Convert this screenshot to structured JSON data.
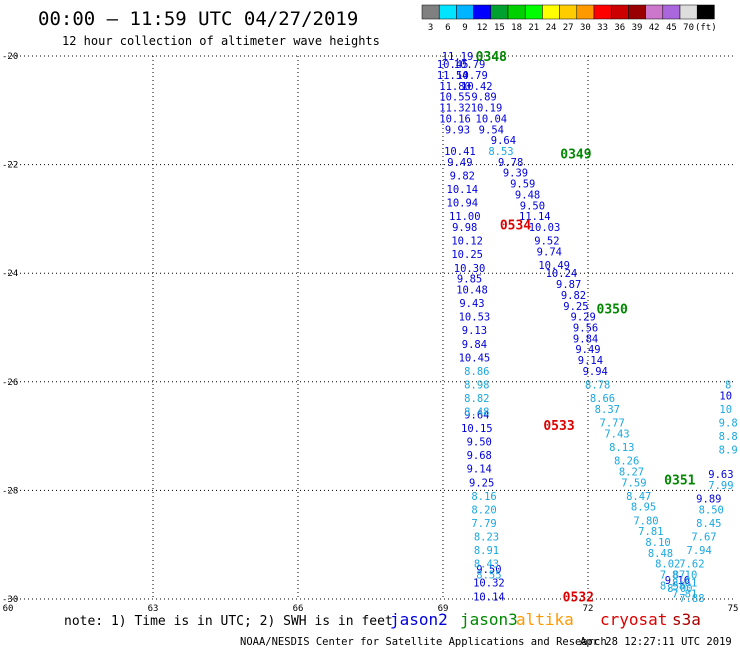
{
  "header": {
    "title": "00:00 – 11:59 UTC 04/27/2019",
    "subtitle": "12 hour collection of altimeter wave heights"
  },
  "color_scale": {
    "labels": [
      "3",
      "6",
      "9",
      "12",
      "15",
      "18",
      "21",
      "24",
      "27",
      "30",
      "33",
      "36",
      "39",
      "42",
      "45",
      "70",
      "(ft)"
    ],
    "colors": [
      "#808080",
      "#00e5ff",
      "#00b4ff",
      "#0000ff",
      "#00a030",
      "#00d000",
      "#00ff00",
      "#ffff00",
      "#ffcc00",
      "#ff9900",
      "#ff0000",
      "#cc0000",
      "#990000",
      "#cc77cc",
      "#aa66dd",
      "#dddddd",
      "#000000"
    ]
  },
  "chart_data": {
    "type": "scatter",
    "title": "00:00 – 11:59 UTC 04/27/2019",
    "subtitle": "12 hour collection of altimeter wave heights",
    "xlim": [
      60,
      75
    ],
    "ylim": [
      -30,
      -20
    ],
    "x_ticks": [
      "60",
      "63",
      "66",
      "69",
      "72",
      "75"
    ],
    "y_ticks": [
      "-20",
      "-22",
      "-24",
      "-26",
      "-28",
      "-30"
    ],
    "grid": true,
    "colors": {
      "dark": "#0000dd",
      "light": "#1aa8e0",
      "pass_green": "#008800",
      "pass_red": "#dd0000"
    },
    "pass_labels": [
      {
        "text": "0348",
        "x": 70.0,
        "y": -20.0,
        "color": "pass_green"
      },
      {
        "text": "0349",
        "x": 71.75,
        "y": -21.8,
        "color": "pass_green"
      },
      {
        "text": "0350",
        "x": 72.5,
        "y": -24.65,
        "color": "pass_green"
      },
      {
        "text": "0351",
        "x": 73.9,
        "y": -27.8,
        "color": "pass_green"
      },
      {
        "text": "0534",
        "x": 70.5,
        "y": -23.1,
        "color": "pass_red"
      },
      {
        "text": "0533",
        "x": 71.4,
        "y": -26.8,
        "color": "pass_red"
      },
      {
        "text": "0532",
        "x": 71.8,
        "y": -29.95,
        "color": "pass_red"
      }
    ],
    "tracks": [
      {
        "name": "",
        "color": "dark",
        "points": [
          {
            "lon": 69.3,
            "lat": -20.0,
            "v": "11.19"
          },
          {
            "lon": 69.2,
            "lat": -20.15,
            "v": "10.45"
          },
          {
            "lon": 69.55,
            "lat": -20.15,
            "v": "10.79"
          },
          {
            "lon": 69.2,
            "lat": -20.35,
            "v": "11.54"
          },
          {
            "lon": 69.6,
            "lat": -20.35,
            "v": "10.79"
          },
          {
            "lon": 69.25,
            "lat": -20.55,
            "v": "11.80"
          },
          {
            "lon": 69.7,
            "lat": -20.55,
            "v": "10.42"
          },
          {
            "lon": 69.25,
            "lat": -20.75,
            "v": "10.55"
          },
          {
            "lon": 69.85,
            "lat": -20.75,
            "v": "9.89"
          },
          {
            "lon": 69.25,
            "lat": -20.95,
            "v": "11.32"
          },
          {
            "lon": 69.9,
            "lat": -20.95,
            "v": "10.19"
          },
          {
            "lon": 69.25,
            "lat": -21.15,
            "v": "10.16"
          },
          {
            "lon": 70.0,
            "lat": -21.15,
            "v": "10.04"
          },
          {
            "lon": 69.3,
            "lat": -21.35,
            "v": "9.93"
          },
          {
            "lon": 70.0,
            "lat": -21.35,
            "v": "9.54"
          },
          {
            "lon": 70.25,
            "lat": -21.55,
            "v": "9.64"
          },
          {
            "lon": 69.35,
            "lat": -21.75,
            "v": "10.41"
          },
          {
            "lon": 69.35,
            "lat": -21.95,
            "v": "9.49"
          },
          {
            "lon": 70.4,
            "lat": -21.95,
            "v": "9.78"
          },
          {
            "lon": 70.5,
            "lat": -22.15,
            "v": "9.39"
          },
          {
            "lon": 69.4,
            "lat": -22.2,
            "v": "9.82"
          },
          {
            "lon": 70.65,
            "lat": -22.35,
            "v": "9.59"
          },
          {
            "lon": 69.4,
            "lat": -22.45,
            "v": "10.14"
          },
          {
            "lon": 70.75,
            "lat": -22.55,
            "v": "9.48"
          },
          {
            "lon": 69.4,
            "lat": -22.7,
            "v": "10.94"
          },
          {
            "lon": 70.85,
            "lat": -22.75,
            "v": "9.50"
          },
          {
            "lon": 69.45,
            "lat": -22.95,
            "v": "11.00"
          },
          {
            "lon": 70.9,
            "lat": -22.95,
            "v": "11.14"
          },
          {
            "lon": 69.45,
            "lat": -23.15,
            "v": "9.98"
          },
          {
            "lon": 71.1,
            "lat": -23.15,
            "v": "10.03"
          },
          {
            "lon": 69.5,
            "lat": -23.4,
            "v": "10.12"
          },
          {
            "lon": 71.15,
            "lat": -23.4,
            "v": "9.52"
          },
          {
            "lon": 71.2,
            "lat": -23.6,
            "v": "9.74"
          },
          {
            "lon": 69.5,
            "lat": -23.65,
            "v": "10.25"
          },
          {
            "lon": 71.3,
            "lat": -23.85,
            "v": "10.49"
          },
          {
            "lon": 69.55,
            "lat": -23.9,
            "v": "10.30"
          },
          {
            "lon": 71.45,
            "lat": -24.0,
            "v": "10.24"
          },
          {
            "lon": 69.55,
            "lat": -24.1,
            "v": "9.85"
          },
          {
            "lon": 71.6,
            "lat": -24.2,
            "v": "9.87"
          },
          {
            "lon": 69.6,
            "lat": -24.3,
            "v": "10.48"
          },
          {
            "lon": 71.7,
            "lat": -24.4,
            "v": "9.82"
          },
          {
            "lon": 69.6,
            "lat": -24.55,
            "v": "9.43"
          },
          {
            "lon": 71.75,
            "lat": -24.6,
            "v": "9.25"
          },
          {
            "lon": 71.9,
            "lat": -24.8,
            "v": "9.29"
          },
          {
            "lon": 69.65,
            "lat": -24.8,
            "v": "10.53"
          },
          {
            "lon": 71.95,
            "lat": -25.0,
            "v": "9.56"
          },
          {
            "lon": 69.65,
            "lat": -25.05,
            "v": "9.13"
          },
          {
            "lon": 71.95,
            "lat": -25.2,
            "v": "9.84"
          },
          {
            "lon": 69.65,
            "lat": -25.3,
            "v": "9.84"
          },
          {
            "lon": 72.0,
            "lat": -25.4,
            "v": "9.49"
          },
          {
            "lon": 69.65,
            "lat": -25.55,
            "v": "10.45"
          },
          {
            "lon": 72.05,
            "lat": -25.6,
            "v": "9.14"
          },
          {
            "lon": 72.15,
            "lat": -25.8,
            "v": "9.94"
          },
          {
            "lon": 69.7,
            "lat": -26.6,
            "v": "9.64"
          },
          {
            "lon": 69.7,
            "lat": -26.85,
            "v": "10.15"
          },
          {
            "lon": 69.75,
            "lat": -27.1,
            "v": "9.50"
          },
          {
            "lon": 69.75,
            "lat": -27.35,
            "v": "9.68"
          },
          {
            "lon": 69.75,
            "lat": -27.6,
            "v": "9.14"
          },
          {
            "lon": 69.8,
            "lat": -27.85,
            "v": "9.25"
          },
          {
            "lon": 69.95,
            "lat": -29.45,
            "v": "9.50"
          },
          {
            "lon": 69.95,
            "lat": -29.7,
            "v": "10.32"
          },
          {
            "lon": 69.95,
            "lat": -29.95,
            "v": "10.14"
          },
          {
            "lon": 74.85,
            "lat": -26.25,
            "v": "10"
          },
          {
            "lon": 74.75,
            "lat": -27.7,
            "v": "9.63"
          },
          {
            "lon": 74.5,
            "lat": -28.15,
            "v": "9.89"
          },
          {
            "lon": 73.85,
            "lat": -29.65,
            "v": "9.16"
          }
        ]
      },
      {
        "name": "",
        "color": "light",
        "points": [
          {
            "lon": 70.2,
            "lat": -21.75,
            "v": "8.53"
          },
          {
            "lon": 69.7,
            "lat": -25.8,
            "v": "8.86"
          },
          {
            "lon": 69.7,
            "lat": -26.05,
            "v": "8.98"
          },
          {
            "lon": 69.7,
            "lat": -26.3,
            "v": "8.82"
          },
          {
            "lon": 69.7,
            "lat": -26.55,
            "v": "8.48"
          },
          {
            "lon": 69.85,
            "lat": -28.1,
            "v": "8.16"
          },
          {
            "lon": 69.85,
            "lat": -28.35,
            "v": "8.20"
          },
          {
            "lon": 69.85,
            "lat": -28.6,
            "v": "7.79"
          },
          {
            "lon": 69.9,
            "lat": -28.85,
            "v": "8.23"
          },
          {
            "lon": 69.9,
            "lat": -29.1,
            "v": "8.91"
          },
          {
            "lon": 69.9,
            "lat": -29.35,
            "v": "8.43"
          },
          {
            "lon": 69.95,
            "lat": -29.55,
            "v": "8.55"
          },
          {
            "lon": 72.2,
            "lat": -26.05,
            "v": "8.78"
          },
          {
            "lon": 72.3,
            "lat": -26.3,
            "v": "8.66"
          },
          {
            "lon": 72.4,
            "lat": -26.5,
            "v": "8.37"
          },
          {
            "lon": 72.5,
            "lat": -26.75,
            "v": "7.77"
          },
          {
            "lon": 72.6,
            "lat": -26.95,
            "v": "7.43"
          },
          {
            "lon": 72.7,
            "lat": -27.2,
            "v": "8.13"
          },
          {
            "lon": 72.8,
            "lat": -27.45,
            "v": "8.26"
          },
          {
            "lon": 72.9,
            "lat": -27.65,
            "v": "8.27"
          },
          {
            "lon": 72.95,
            "lat": -27.85,
            "v": "7.59"
          },
          {
            "lon": 73.05,
            "lat": -28.1,
            "v": "8.47"
          },
          {
            "lon": 73.15,
            "lat": -28.3,
            "v": "8.95"
          },
          {
            "lon": 73.2,
            "lat": -28.55,
            "v": "7.80"
          },
          {
            "lon": 73.3,
            "lat": -28.75,
            "v": "7.81"
          },
          {
            "lon": 73.45,
            "lat": -28.95,
            "v": "8.10"
          },
          {
            "lon": 73.5,
            "lat": -29.15,
            "v": "8.48"
          },
          {
            "lon": 73.65,
            "lat": -29.35,
            "v": "8.02"
          },
          {
            "lon": 73.75,
            "lat": -29.55,
            "v": "7.87"
          },
          {
            "lon": 73.75,
            "lat": -29.75,
            "v": "8.58"
          },
          {
            "lon": 74.0,
            "lat": -29.9,
            "v": "7.81"
          },
          {
            "lon": 74.15,
            "lat": -29.98,
            "v": "7.88"
          },
          {
            "lon": 74.9,
            "lat": -26.05,
            "v": "8"
          },
          {
            "lon": 74.85,
            "lat": -26.5,
            "v": "10"
          },
          {
            "lon": 74.9,
            "lat": -26.75,
            "v": "9.8"
          },
          {
            "lon": 74.9,
            "lat": -27.0,
            "v": "8.8"
          },
          {
            "lon": 74.9,
            "lat": -27.25,
            "v": "8.9"
          },
          {
            "lon": 74.75,
            "lat": -27.9,
            "v": "7.99"
          },
          {
            "lon": 74.55,
            "lat": -28.35,
            "v": "8.50"
          },
          {
            "lon": 74.5,
            "lat": -28.6,
            "v": "8.45"
          },
          {
            "lon": 74.4,
            "lat": -28.85,
            "v": "7.67"
          },
          {
            "lon": 74.3,
            "lat": -29.1,
            "v": "7.94"
          },
          {
            "lon": 74.15,
            "lat": -29.35,
            "v": "7.62"
          },
          {
            "lon": 74.0,
            "lat": -29.55,
            "v": "8.10"
          },
          {
            "lon": 73.9,
            "lat": -29.8,
            "v": "8.00"
          },
          {
            "lon": 74.0,
            "lat": -29.7,
            "v": "8.61"
          }
        ]
      }
    ]
  },
  "footer": {
    "note": "note:  1) Time is in UTC; 2) SWH is in feet",
    "satellites": [
      {
        "name": "jason2",
        "color": "#0000dd"
      },
      {
        "name": "jason3",
        "color": "#008800"
      },
      {
        "name": "altika",
        "color": "#ff9900"
      },
      {
        "name": "cryosat",
        "color": "#dd0000"
      },
      {
        "name": "s3a",
        "color": "#aa0000"
      }
    ],
    "credit": "NOAA/NESDIS Center for Satellite Applications and Research",
    "timestamp": "Apr 28 12:27:11 UTC 2019"
  }
}
